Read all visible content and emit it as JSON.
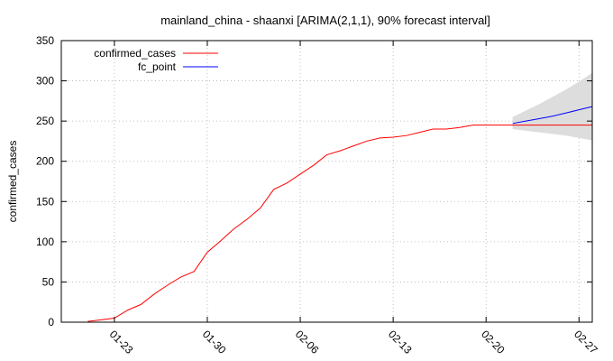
{
  "chart_data": {
    "type": "line",
    "title": "mainland_china - shaanxi [ARIMA(2,1,1), 90% forecast interval]",
    "xlabel": "",
    "ylabel": "confirmed_cases",
    "ylim": [
      0,
      350
    ],
    "yticks": [
      0,
      50,
      100,
      150,
      200,
      250,
      300,
      350
    ],
    "xlim": [
      "2020-01-19",
      "2020-02-28"
    ],
    "xticks": [
      "2020-01-23",
      "2020-01-30",
      "2020-02-06",
      "2020-02-13",
      "2020-02-20",
      "2020-02-27"
    ],
    "xtick_labels": [
      "01-23",
      "01-30",
      "02-06",
      "02-13",
      "02-20",
      "02-27"
    ],
    "grid": true,
    "legend_position": "top-left",
    "series": [
      {
        "name": "confirmed_cases",
        "color": "#ff0000",
        "x": [
          "2020-01-21",
          "2020-01-22",
          "2020-01-23",
          "2020-01-24",
          "2020-01-25",
          "2020-01-26",
          "2020-01-27",
          "2020-01-28",
          "2020-01-29",
          "2020-01-30",
          "2020-01-31",
          "2020-02-01",
          "2020-02-02",
          "2020-02-03",
          "2020-02-04",
          "2020-02-05",
          "2020-02-06",
          "2020-02-07",
          "2020-02-08",
          "2020-02-09",
          "2020-02-10",
          "2020-02-11",
          "2020-02-12",
          "2020-02-13",
          "2020-02-14",
          "2020-02-15",
          "2020-02-16",
          "2020-02-17",
          "2020-02-18",
          "2020-02-19",
          "2020-02-20",
          "2020-02-21",
          "2020-02-22",
          "2020-02-23",
          "2020-02-24",
          "2020-02-25",
          "2020-02-26",
          "2020-02-27",
          "2020-02-28"
        ],
        "y": [
          1,
          3,
          5,
          15,
          22,
          35,
          46,
          56,
          63,
          87,
          101,
          116,
          128,
          142,
          165,
          173,
          184,
          195,
          208,
          213,
          219,
          225,
          229,
          230,
          232,
          236,
          240,
          240,
          242,
          245,
          245,
          245,
          245,
          245,
          245,
          245,
          245,
          245,
          245
        ]
      },
      {
        "name": "fc_point",
        "color": "#0000ff",
        "x": [
          "2020-02-22",
          "2020-02-23",
          "2020-02-24",
          "2020-02-25",
          "2020-02-26",
          "2020-02-27",
          "2020-02-28"
        ],
        "y": [
          247,
          250,
          253,
          256,
          260,
          264,
          268
        ]
      }
    ],
    "interval": {
      "label": "90% forecast interval",
      "color": "#dddddd",
      "x": [
        "2020-02-22",
        "2020-02-23",
        "2020-02-24",
        "2020-02-25",
        "2020-02-26",
        "2020-02-27",
        "2020-02-28"
      ],
      "upper": [
        255,
        263,
        271,
        280,
        289,
        299,
        310
      ],
      "lower": [
        240,
        238,
        236,
        234,
        232,
        229,
        226
      ]
    }
  }
}
